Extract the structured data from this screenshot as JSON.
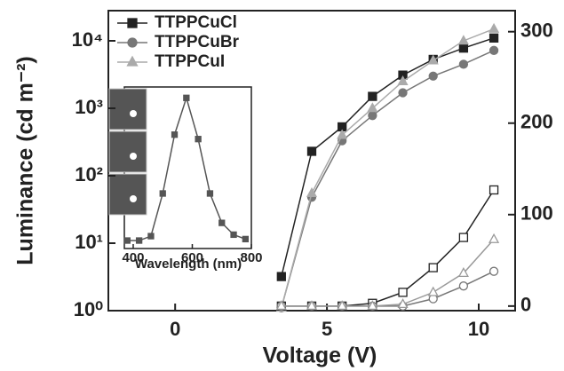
{
  "chart_data": [
    {
      "type": "line",
      "xlabel": "Voltage (V)",
      "ylabel": "Luminance (cd m⁻²)",
      "x": [
        3.5,
        4.5,
        5.5,
        6.5,
        7.5,
        8.5,
        9.5,
        10.5
      ],
      "xlim": [
        -2.2,
        11.2
      ],
      "xticks": [
        0,
        5,
        10
      ],
      "ylim": [
        1,
        28000
      ],
      "log_y": true,
      "yticks": [
        {
          "value": 1,
          "label": "10⁰"
        },
        {
          "value": 10,
          "label": "10¹"
        },
        {
          "value": 100,
          "label": "10²"
        },
        {
          "value": 1000,
          "label": "10³"
        },
        {
          "value": 10000,
          "label": "10⁴"
        }
      ],
      "y2lim": [
        -5,
        323
      ],
      "y2ticks": [
        0,
        100,
        200,
        300
      ],
      "legend": "upper left",
      "series": [
        {
          "name": "TTPPCuCl",
          "color": "#222222",
          "marker": "square",
          "values": [
            3.2,
            230,
            530,
            1500,
            3100,
            5300,
            7800,
            11000
          ]
        },
        {
          "name": "TTPPCuBr",
          "color": "#777777",
          "marker": "circle",
          "values": [
            1.1,
            48,
            330,
            780,
            1700,
            3000,
            4500,
            7200
          ]
        },
        {
          "name": "TTPPCuI",
          "color": "#aaaaaa",
          "marker": "triangle",
          "values": [
            1.1,
            55,
            400,
            1000,
            2500,
            5100,
            10000,
            15000
          ]
        },
        {
          "axis": "y2",
          "color": "#222222",
          "marker": "square",
          "open": true,
          "values": [
            0,
            0,
            0,
            3,
            15,
            42,
            75,
            127
          ]
        },
        {
          "axis": "y2",
          "color": "#777777",
          "marker": "circle",
          "open": true,
          "values": [
            0,
            0,
            0,
            0,
            0,
            8,
            22,
            38
          ]
        },
        {
          "axis": "y2",
          "color": "#999999",
          "marker": "triangle",
          "open": true,
          "values": [
            0,
            0,
            0,
            0,
            2,
            15,
            36,
            73
          ]
        }
      ]
    },
    {
      "type": "line",
      "xlabel": "Wavelength (nm)",
      "x": [
        380,
        420,
        460,
        500,
        540,
        580,
        620,
        660,
        700,
        740,
        780
      ],
      "xlim": [
        370,
        800
      ],
      "xticks": [
        400,
        600,
        800
      ],
      "ylim": [
        0,
        1.05
      ],
      "series": [
        {
          "color": "#555555",
          "marker": "square",
          "values": [
            0.03,
            0.03,
            0.06,
            0.35,
            0.75,
            1.0,
            0.72,
            0.35,
            0.15,
            0.07,
            0.04
          ]
        }
      ]
    }
  ]
}
